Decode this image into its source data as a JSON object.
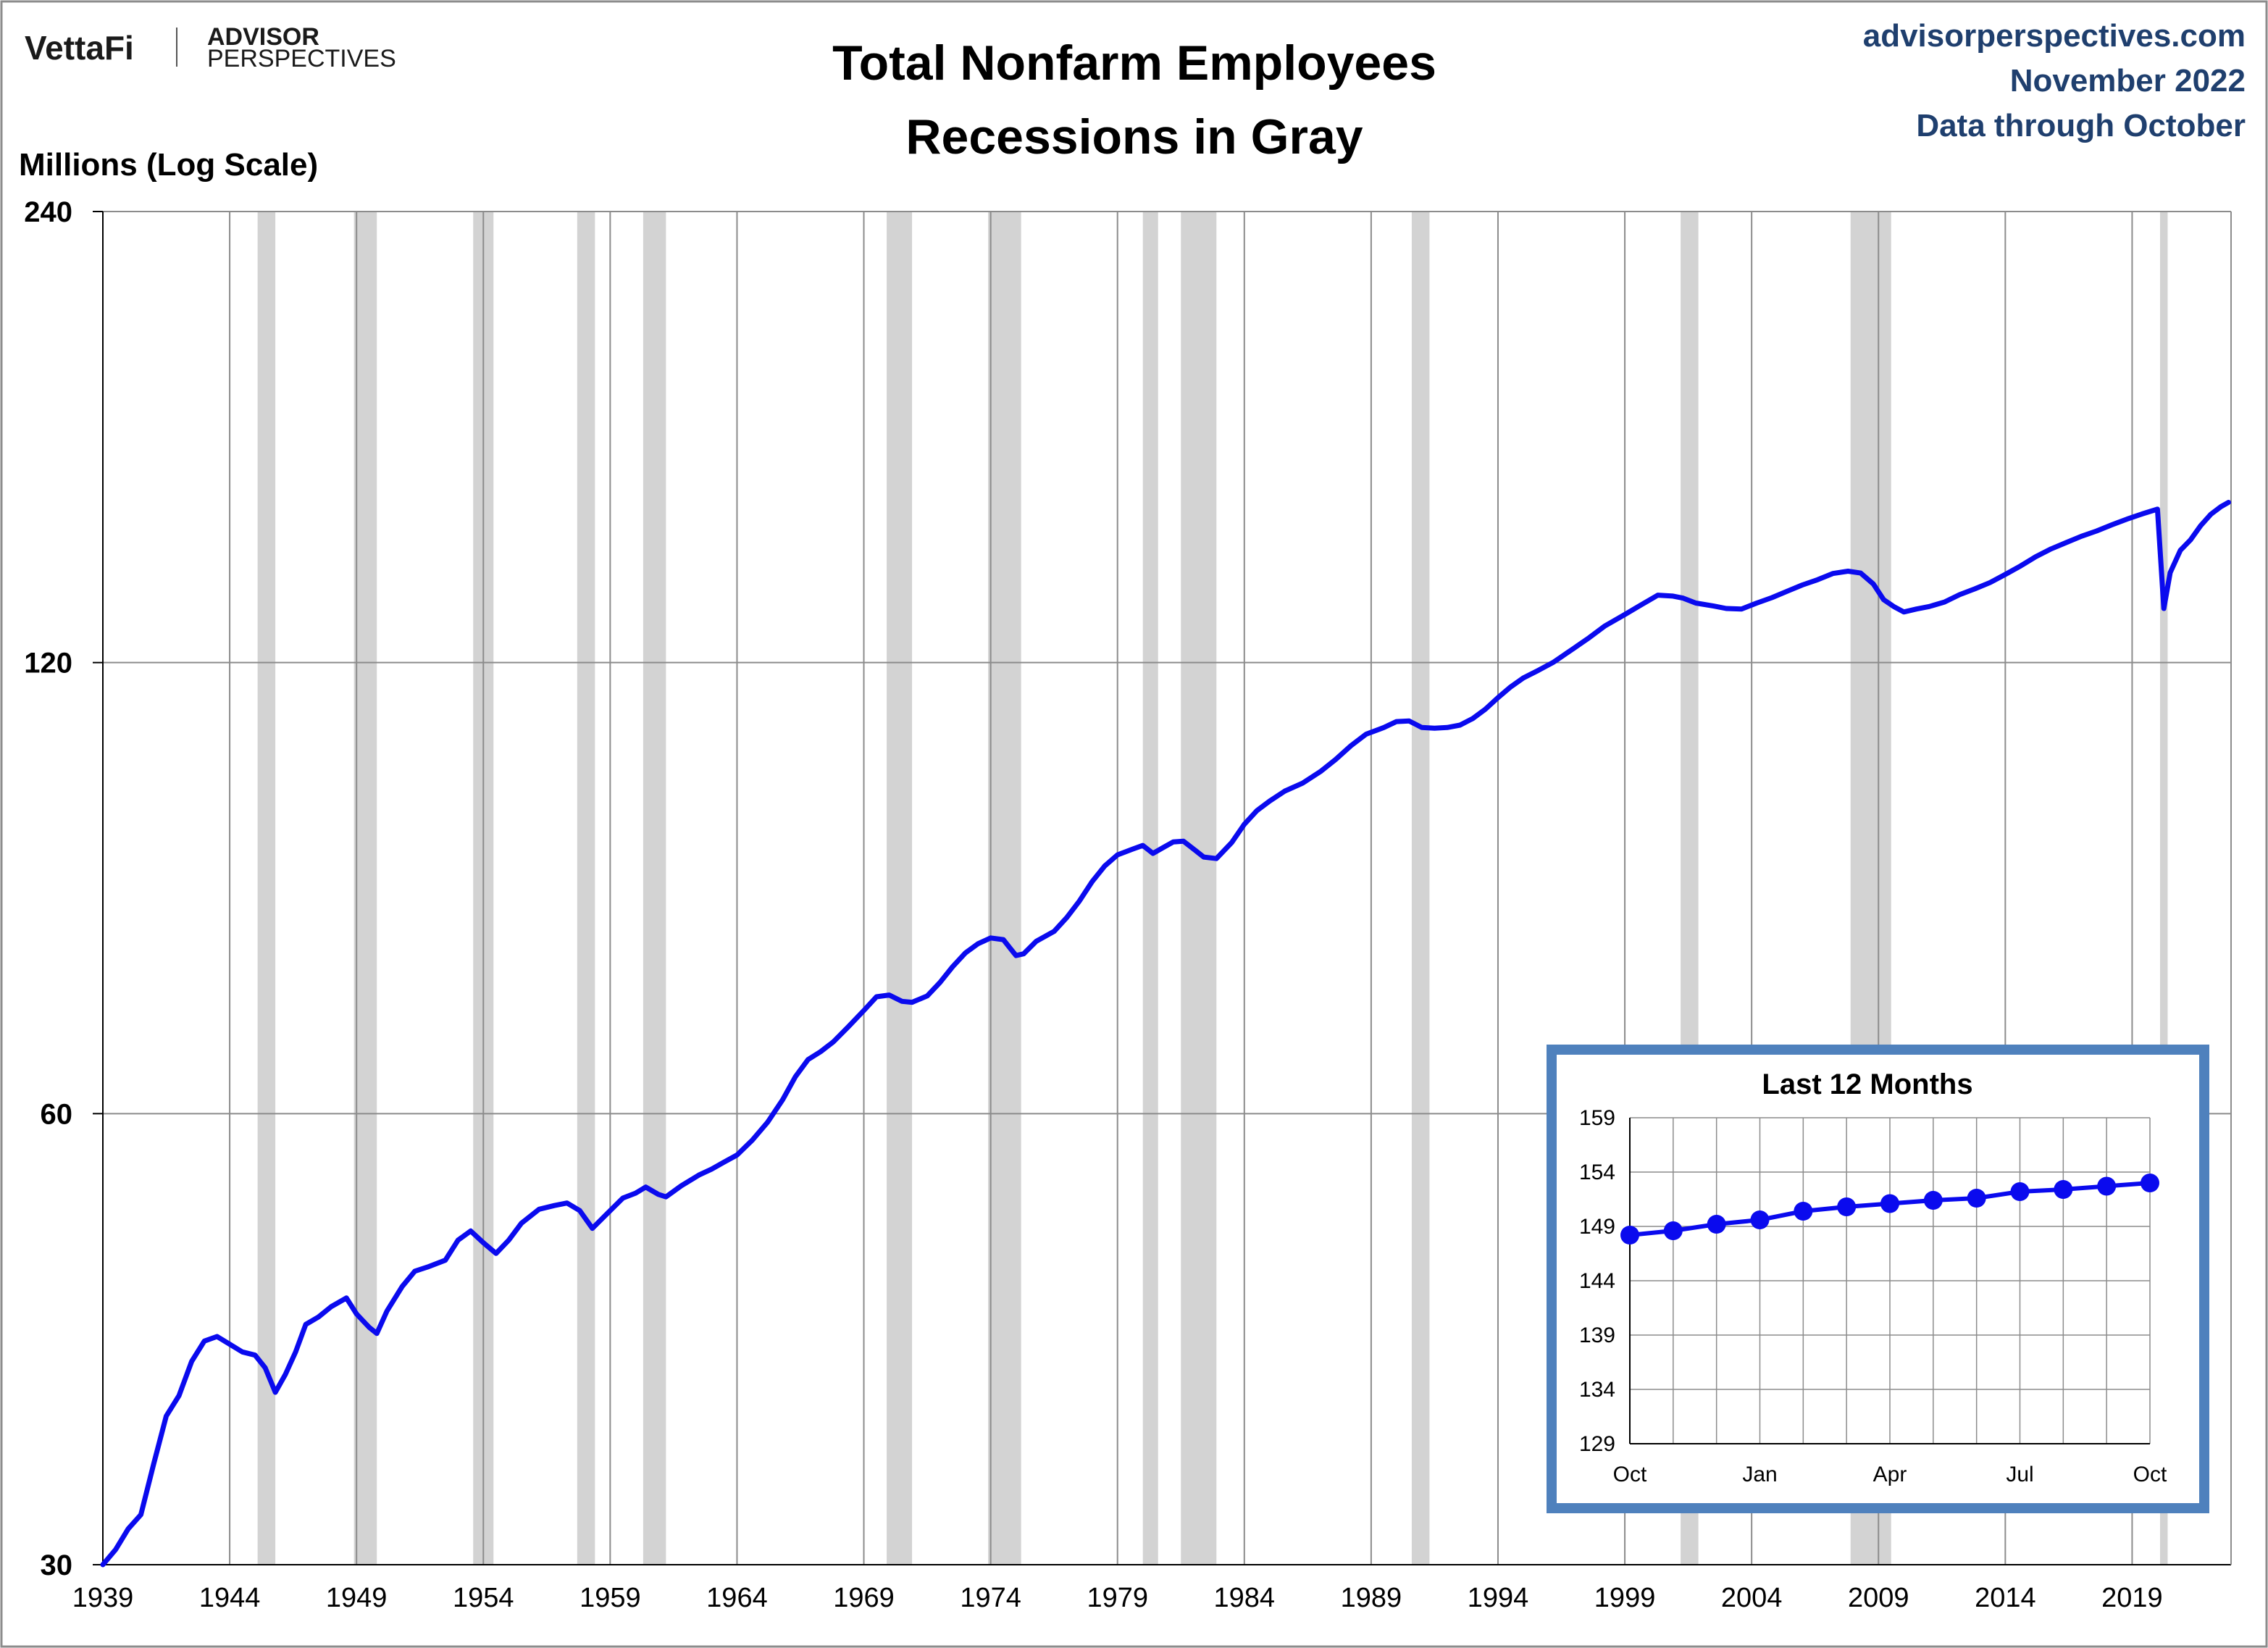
{
  "header": {
    "logo_vettafi": "VettaFi",
    "logo_advisor": "ADVISOR",
    "logo_perspectives": "PERSPECTIVES",
    "site": "advisorperspectives.com",
    "date": "November 2022",
    "data_note": "Data through October"
  },
  "colors": {
    "series": "#0a0aee",
    "recession": "#d3d3d3",
    "grid": "#8c8c8c",
    "inset_border": "#4f81bd",
    "header_right_text": "#1f3f6e"
  },
  "chart_data": [
    {
      "type": "line",
      "title": "Total Nonfarm Employees",
      "subtitle": "Recessions in Gray",
      "ylabel": "Millions (Log Scale)",
      "xlabel": "",
      "y_scale": "log",
      "ylim": [
        30,
        240
      ],
      "yticks": [
        30,
        60,
        120,
        240
      ],
      "xlim": [
        1939.0,
        2022.9
      ],
      "xticks": [
        1939,
        1944,
        1949,
        1954,
        1959,
        1964,
        1969,
        1974,
        1979,
        1984,
        1989,
        1994,
        1999,
        2004,
        2009,
        2014,
        2019
      ],
      "grid": true,
      "recessions": [
        [
          1945.1,
          1945.8
        ],
        [
          1948.9,
          1949.8
        ],
        [
          1953.6,
          1954.4
        ],
        [
          1957.7,
          1958.4
        ],
        [
          1960.3,
          1961.2
        ],
        [
          1969.9,
          1970.9
        ],
        [
          1973.9,
          1975.2
        ],
        [
          1980.0,
          1980.6
        ],
        [
          1981.5,
          1982.9
        ],
        [
          1990.6,
          1991.3
        ],
        [
          2001.2,
          2001.9
        ],
        [
          2007.9,
          2009.5
        ],
        [
          2020.1,
          2020.4
        ]
      ],
      "series": [
        {
          "points": [
            [
              1939.0,
              30.0
            ],
            [
              1939.5,
              30.7
            ],
            [
              1940.0,
              31.7
            ],
            [
              1940.5,
              32.4
            ],
            [
              1941.0,
              35.0
            ],
            [
              1941.5,
              37.7
            ],
            [
              1942.0,
              38.9
            ],
            [
              1942.5,
              41.0
            ],
            [
              1943.0,
              42.3
            ],
            [
              1943.5,
              42.6
            ],
            [
              1944.0,
              42.1
            ],
            [
              1944.5,
              41.6
            ],
            [
              1945.0,
              41.4
            ],
            [
              1945.4,
              40.6
            ],
            [
              1945.8,
              39.1
            ],
            [
              1946.2,
              40.2
            ],
            [
              1946.6,
              41.6
            ],
            [
              1947.0,
              43.4
            ],
            [
              1947.5,
              43.9
            ],
            [
              1948.0,
              44.6
            ],
            [
              1948.6,
              45.2
            ],
            [
              1949.0,
              44.1
            ],
            [
              1949.5,
              43.2
            ],
            [
              1949.8,
              42.8
            ],
            [
              1950.2,
              44.3
            ],
            [
              1950.8,
              46.0
            ],
            [
              1951.3,
              47.1
            ],
            [
              1951.8,
              47.4
            ],
            [
              1952.5,
              47.9
            ],
            [
              1953.0,
              49.4
            ],
            [
              1953.5,
              50.1
            ],
            [
              1954.0,
              49.2
            ],
            [
              1954.5,
              48.4
            ],
            [
              1955.0,
              49.4
            ],
            [
              1955.5,
              50.7
            ],
            [
              1956.2,
              51.8
            ],
            [
              1956.8,
              52.1
            ],
            [
              1957.3,
              52.3
            ],
            [
              1957.8,
              51.7
            ],
            [
              1958.3,
              50.3
            ],
            [
              1958.8,
              51.3
            ],
            [
              1959.5,
              52.7
            ],
            [
              1960.0,
              53.1
            ],
            [
              1960.4,
              53.6
            ],
            [
              1960.9,
              53.0
            ],
            [
              1961.2,
              52.8
            ],
            [
              1961.8,
              53.7
            ],
            [
              1962.5,
              54.6
            ],
            [
              1963.0,
              55.1
            ],
            [
              1963.5,
              55.7
            ],
            [
              1964.0,
              56.3
            ],
            [
              1964.6,
              57.6
            ],
            [
              1965.2,
              59.2
            ],
            [
              1965.8,
              61.3
            ],
            [
              1966.3,
              63.5
            ],
            [
              1966.8,
              65.2
            ],
            [
              1967.3,
              66.0
            ],
            [
              1967.8,
              67.0
            ],
            [
              1968.4,
              68.6
            ],
            [
              1969.0,
              70.3
            ],
            [
              1969.5,
              71.8
            ],
            [
              1970.0,
              72.0
            ],
            [
              1970.5,
              71.3
            ],
            [
              1970.9,
              71.2
            ],
            [
              1971.5,
              71.9
            ],
            [
              1972.0,
              73.4
            ],
            [
              1972.5,
              75.2
            ],
            [
              1973.0,
              76.8
            ],
            [
              1973.5,
              77.9
            ],
            [
              1974.0,
              78.6
            ],
            [
              1974.5,
              78.4
            ],
            [
              1975.0,
              76.5
            ],
            [
              1975.3,
              76.7
            ],
            [
              1975.8,
              78.2
            ],
            [
              1976.5,
              79.4
            ],
            [
              1977.0,
              81.1
            ],
            [
              1977.5,
              83.2
            ],
            [
              1978.0,
              85.7
            ],
            [
              1978.5,
              87.8
            ],
            [
              1979.0,
              89.3
            ],
            [
              1979.6,
              90.1
            ],
            [
              1980.0,
              90.6
            ],
            [
              1980.4,
              89.5
            ],
            [
              1980.8,
              90.3
            ],
            [
              1981.2,
              91.1
            ],
            [
              1981.6,
              91.2
            ],
            [
              1982.0,
              90.1
            ],
            [
              1982.4,
              89.0
            ],
            [
              1982.9,
              88.8
            ],
            [
              1983.5,
              91.0
            ],
            [
              1984.0,
              93.6
            ],
            [
              1984.5,
              95.6
            ],
            [
              1985.0,
              97.0
            ],
            [
              1985.6,
              98.5
            ],
            [
              1986.3,
              99.7
            ],
            [
              1987.0,
              101.5
            ],
            [
              1987.6,
              103.4
            ],
            [
              1988.2,
              105.6
            ],
            [
              1988.8,
              107.5
            ],
            [
              1989.5,
              108.6
            ],
            [
              1990.0,
              109.6
            ],
            [
              1990.5,
              109.7
            ],
            [
              1991.0,
              108.6
            ],
            [
              1991.5,
              108.5
            ],
            [
              1992.0,
              108.6
            ],
            [
              1992.5,
              109.0
            ],
            [
              1993.0,
              110.1
            ],
            [
              1993.5,
              111.7
            ],
            [
              1994.0,
              113.7
            ],
            [
              1994.5,
              115.6
            ],
            [
              1995.0,
              117.2
            ],
            [
              1995.6,
              118.6
            ],
            [
              1996.2,
              120.1
            ],
            [
              1997.0,
              122.7
            ],
            [
              1997.6,
              124.7
            ],
            [
              1998.2,
              126.9
            ],
            [
              1999.0,
              129.2
            ],
            [
              1999.6,
              131.0
            ],
            [
              2000.3,
              133.1
            ],
            [
              2000.9,
              132.9
            ],
            [
              2001.3,
              132.5
            ],
            [
              2001.8,
              131.5
            ],
            [
              2002.5,
              130.9
            ],
            [
              2003.0,
              130.4
            ],
            [
              2003.6,
              130.3
            ],
            [
              2004.2,
              131.5
            ],
            [
              2004.8,
              132.6
            ],
            [
              2005.4,
              133.9
            ],
            [
              2006.0,
              135.2
            ],
            [
              2006.6,
              136.3
            ],
            [
              2007.2,
              137.6
            ],
            [
              2007.8,
              138.1
            ],
            [
              2008.3,
              137.7
            ],
            [
              2008.8,
              135.4
            ],
            [
              2009.2,
              132.2
            ],
            [
              2009.6,
              130.8
            ],
            [
              2010.0,
              129.7
            ],
            [
              2010.5,
              130.3
            ],
            [
              2011.0,
              130.8
            ],
            [
              2011.6,
              131.7
            ],
            [
              2012.2,
              133.2
            ],
            [
              2012.8,
              134.4
            ],
            [
              2013.4,
              135.7
            ],
            [
              2014.0,
              137.4
            ],
            [
              2014.6,
              139.2
            ],
            [
              2015.2,
              141.2
            ],
            [
              2015.8,
              142.9
            ],
            [
              2016.4,
              144.3
            ],
            [
              2017.0,
              145.7
            ],
            [
              2017.6,
              146.9
            ],
            [
              2018.2,
              148.3
            ],
            [
              2018.8,
              149.6
            ],
            [
              2019.4,
              150.8
            ],
            [
              2020.0,
              151.9
            ],
            [
              2020.25,
              130.4
            ],
            [
              2020.5,
              137.8
            ],
            [
              2020.9,
              142.6
            ],
            [
              2021.3,
              144.9
            ],
            [
              2021.7,
              148.1
            ],
            [
              2022.1,
              150.7
            ],
            [
              2022.5,
              152.5
            ],
            [
              2022.8,
              153.5
            ]
          ]
        }
      ]
    },
    {
      "type": "line",
      "title": "Last 12 Months",
      "ylim": [
        129,
        159
      ],
      "yticks": [
        129,
        134,
        139,
        144,
        149,
        154,
        159
      ],
      "xtick_labels": [
        "Oct",
        "Jan",
        "Apr",
        "Jul",
        "Oct"
      ],
      "xtick_index": [
        0,
        3,
        6,
        9,
        12
      ],
      "grid": true,
      "series": [
        {
          "values": [
            148.2,
            148.6,
            149.2,
            149.6,
            150.4,
            150.8,
            151.1,
            151.4,
            151.6,
            152.2,
            152.4,
            152.7,
            153.0
          ],
          "markers": true
        }
      ]
    }
  ]
}
